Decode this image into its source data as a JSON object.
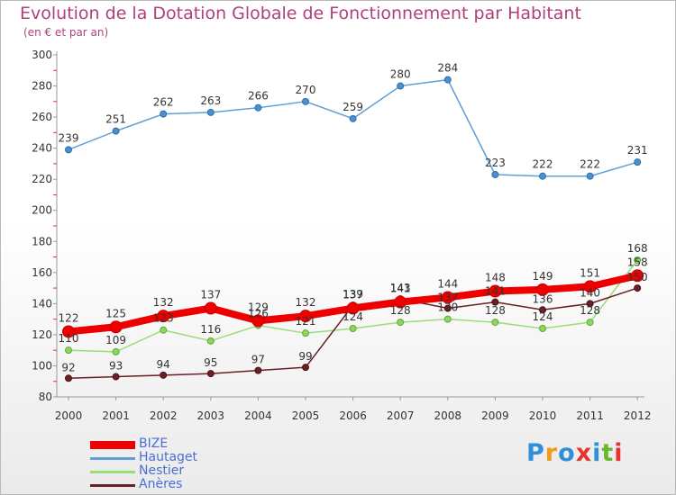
{
  "title": "Evolution de la Dotation Globale de Fonctionnement par Habitant",
  "subtitle": "(en € et par an)",
  "logo": {
    "text": "Proxiti",
    "colors": [
      "#2f8fd8",
      "#f29a1a",
      "#2f8fd8",
      "#e8322c",
      "#2f8fd8",
      "#6ab82e",
      "#e8322c"
    ]
  },
  "chart_data": {
    "type": "line",
    "title": "Evolution de la Dotation Globale de Fonctionnement par Habitant",
    "subtitle": "(en € et par an)",
    "x": [
      "2000",
      "2001",
      "2002",
      "2003",
      "2004",
      "2005",
      "2006",
      "2007",
      "2008",
      "2009",
      "2010",
      "2011",
      "2012"
    ],
    "ylim": [
      80,
      300
    ],
    "yticks": [
      80,
      100,
      120,
      140,
      160,
      180,
      200,
      220,
      240,
      260,
      280,
      300
    ],
    "grid": false,
    "legend_position": "bottom-left",
    "series": [
      {
        "name": "BIZE",
        "color": "#ee0000",
        "values": [
          122,
          125,
          132,
          137,
          129,
          132,
          137,
          141,
          144,
          148,
          149,
          151,
          158
        ]
      },
      {
        "name": "Hautaget",
        "color": "#5f9fd5",
        "values": [
          239,
          251,
          262,
          263,
          266,
          270,
          259,
          280,
          284,
          223,
          222,
          222,
          231
        ]
      },
      {
        "name": "Nestier",
        "color": "#99dd77",
        "values": [
          110,
          109,
          123,
          116,
          126,
          121,
          124,
          128,
          130,
          128,
          124,
          128,
          168
        ]
      },
      {
        "name": "Anères",
        "color": "#6b1e24",
        "values": [
          92,
          93,
          94,
          95,
          97,
          99,
          139,
          143,
          137,
          141,
          136,
          140,
          150
        ]
      }
    ]
  }
}
